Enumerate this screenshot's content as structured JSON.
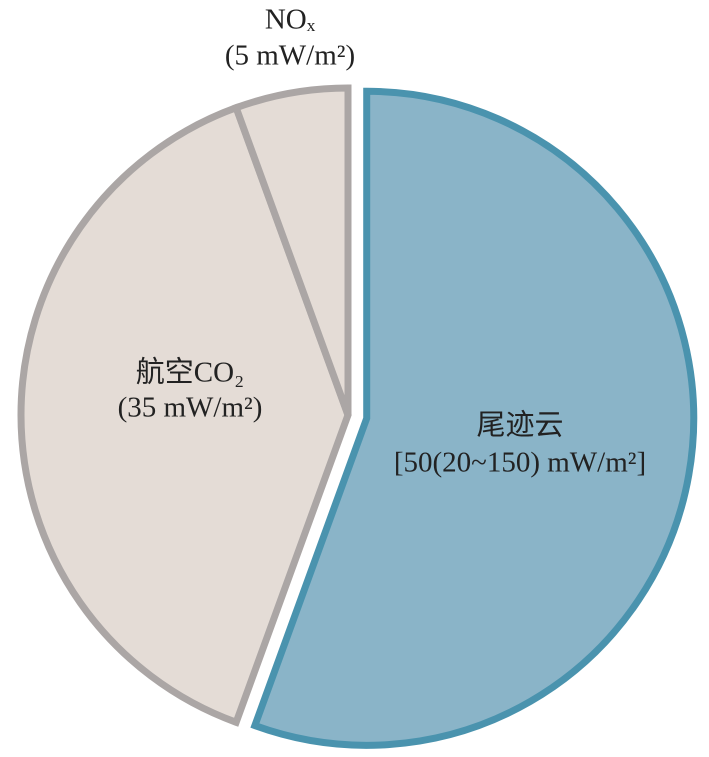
{
  "chart_data": {
    "type": "pie",
    "categories": [
      "尾迹云",
      "航空CO₂",
      "NOₓ"
    ],
    "values": [
      50,
      35,
      5
    ],
    "value_labels": [
      "[50(20~150) mW/m²]",
      "(35 mW/m²)",
      "(5 mW/m²)"
    ],
    "colors": [
      "#8ab4c8",
      "#e4dcd6",
      "#e4dcd6"
    ],
    "edge_colors": [
      "#4a93ae",
      "#aba6a5",
      "#aba6a5"
    ],
    "exploded": [
      true,
      false,
      false
    ]
  }
}
